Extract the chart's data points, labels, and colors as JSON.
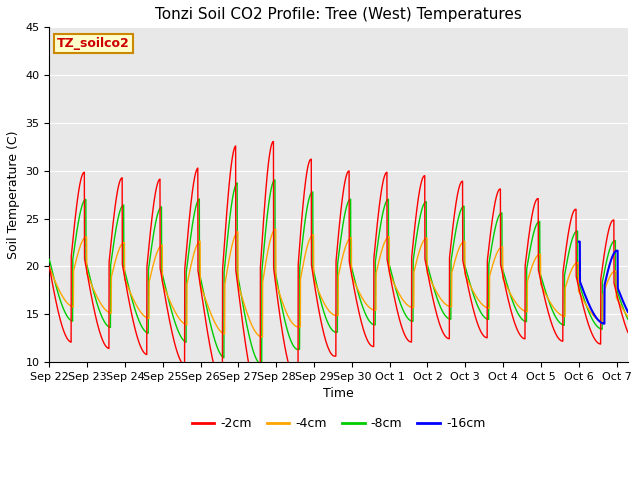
{
  "title": "Tonzi Soil CO2 Profile: Tree (West) Temperatures",
  "xlabel": "Time",
  "ylabel": "Soil Temperature (C)",
  "ylim": [
    10,
    45
  ],
  "background_color": "#ffffff",
  "plot_bg_color": "#e8e8e8",
  "series_colors": {
    "-2cm": "#ff0000",
    "-4cm": "#ffa500",
    "-8cm": "#00cc00",
    "-16cm": "#0000ff"
  },
  "legend_label": "TZ_soilco2",
  "xtick_labels": [
    "Sep 22",
    "Sep 23",
    "Sep 24",
    "Sep 25",
    "Sep 26",
    "Sep 27",
    "Sep 28",
    "Sep 29",
    "Sep 30",
    "Oct 1",
    "Oct 2",
    "Oct 3",
    "Oct 4",
    "Oct 5",
    "Oct 6",
    "Oct 7"
  ],
  "legend_series": [
    "-2cm",
    "-4cm",
    "-8cm",
    "-16cm"
  ],
  "title_fontsize": 11,
  "axis_fontsize": 9,
  "tick_fontsize": 8,
  "legend_fontsize": 9
}
